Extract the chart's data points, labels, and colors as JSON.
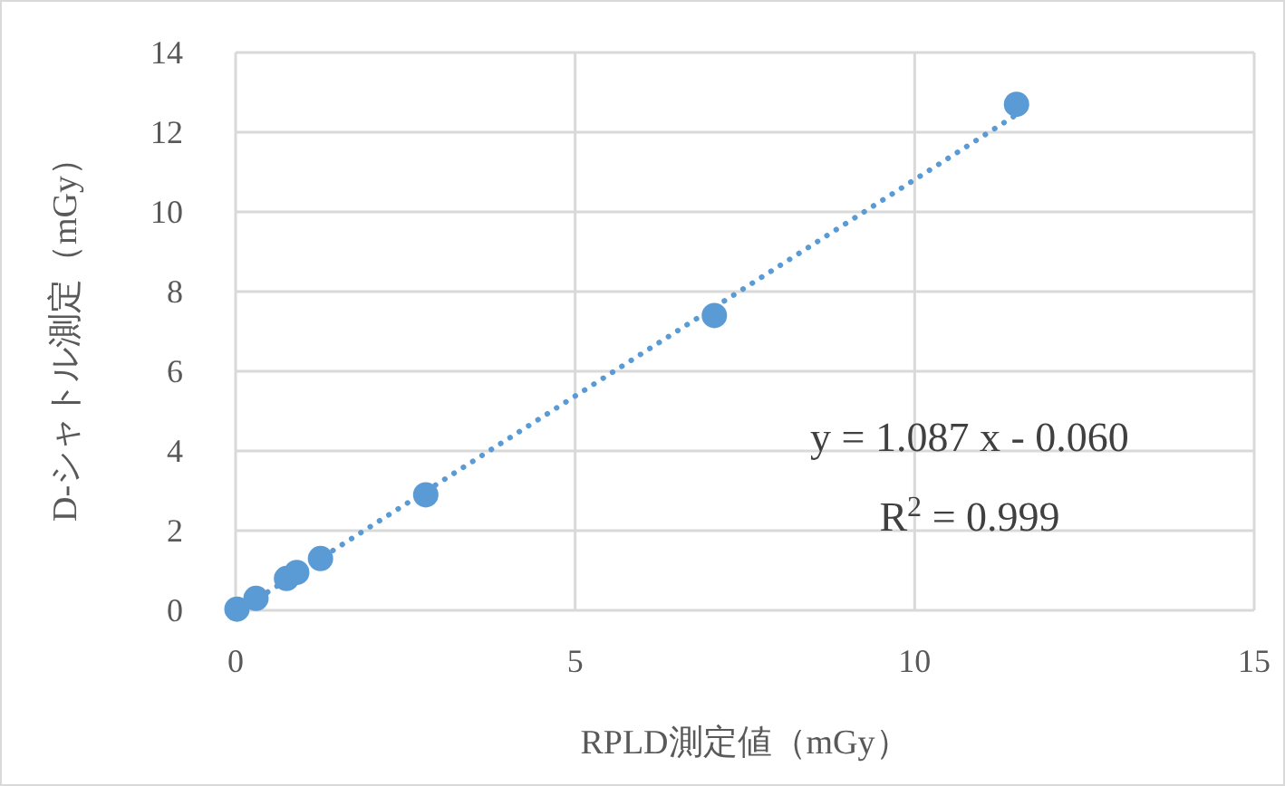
{
  "chart_data": {
    "type": "scatter",
    "xlabel": "RPLD測定値（mGy）",
    "ylabel": "D-シャトル測定（mGy）",
    "x": [
      0.02,
      0.3,
      0.75,
      0.9,
      1.25,
      2.8,
      7.05,
      11.5
    ],
    "series": [
      {
        "color": "#5b9bd5",
        "values": [
          0.03,
          0.3,
          0.8,
          0.95,
          1.3,
          2.9,
          7.4,
          12.7
        ]
      },
      {
        "type": "line",
        "color": "#5b9bd5",
        "x": [
          0.06,
          11.5
        ],
        "values": [
          0.01,
          12.44
        ],
        "line_style": "dotted",
        "marker": "none"
      }
    ],
    "marker": "circle",
    "xlim": [
      0,
      15
    ],
    "xticks": [
      0,
      5,
      10,
      15
    ],
    "ylim": [
      0,
      14
    ],
    "yticks": [
      0,
      2,
      4,
      6,
      8,
      10,
      12,
      14
    ],
    "grid": true,
    "annotations": [
      "y = 1.087 x - 0.060",
      "R$^{2}$ = 0.999"
    ]
  }
}
